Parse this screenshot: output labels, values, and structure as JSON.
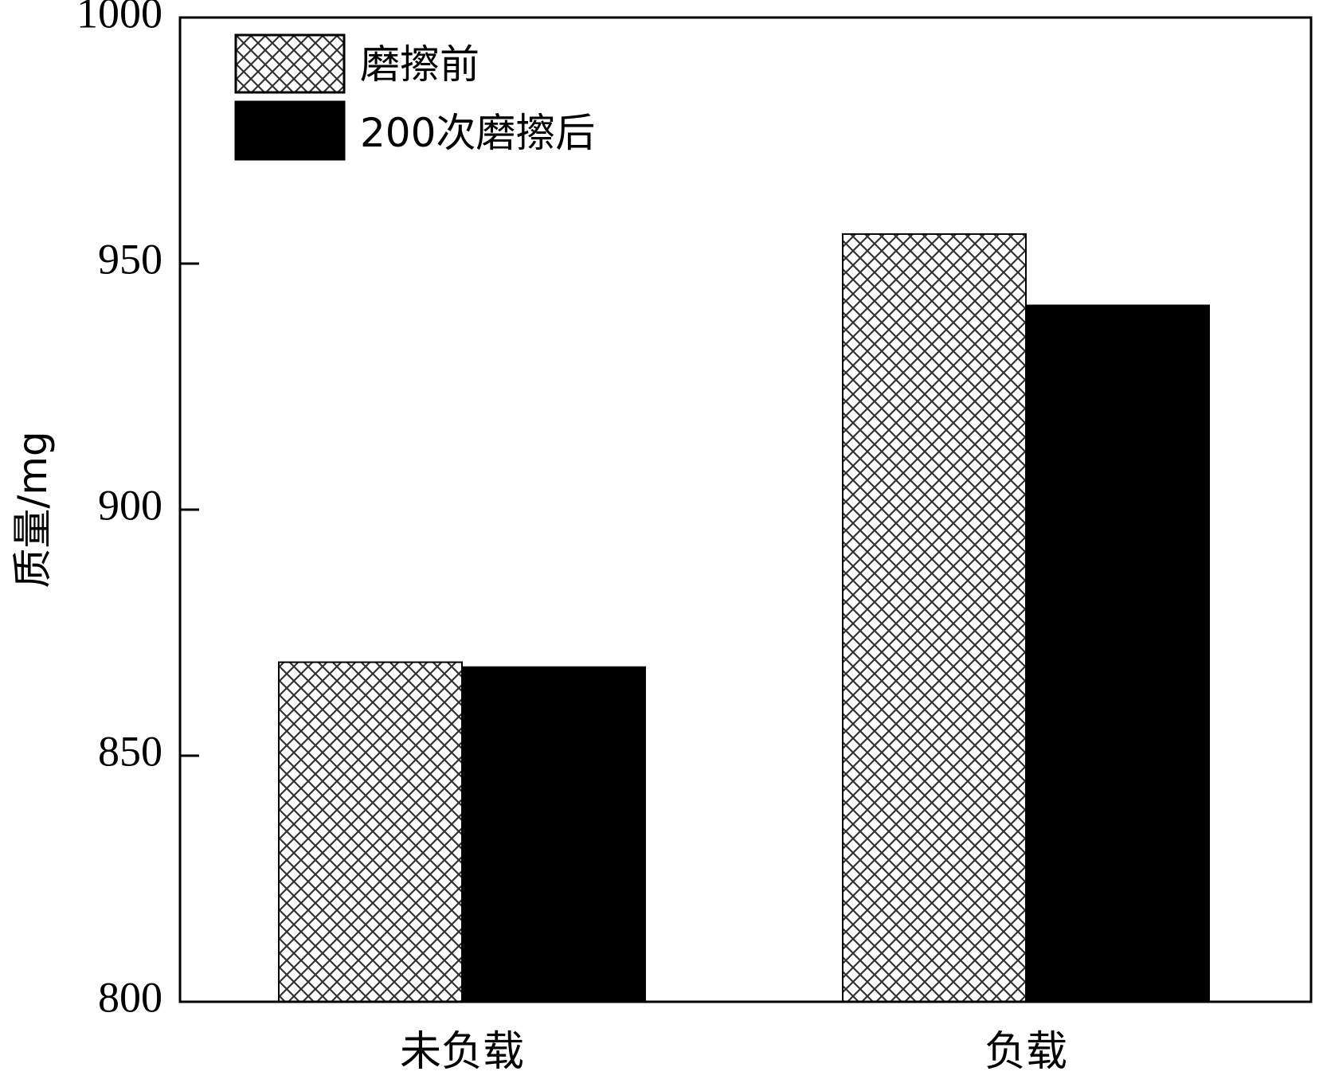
{
  "chart_data": {
    "type": "bar",
    "categories": [
      "未负载",
      "负载"
    ],
    "series": [
      {
        "name": "磨擦前",
        "values": [
          869,
          956
        ],
        "pattern": "crosshatch",
        "color": "#ffffff"
      },
      {
        "name": "200次磨擦后",
        "values": [
          868,
          941.5
        ],
        "pattern": "solid",
        "color": "#000000"
      }
    ],
    "ylabel": "质量/mg",
    "xlabel": "",
    "ylim": [
      800,
      1000
    ],
    "yticks": [
      800,
      850,
      900,
      950,
      1000
    ],
    "grid": false,
    "legend": "top-left"
  }
}
